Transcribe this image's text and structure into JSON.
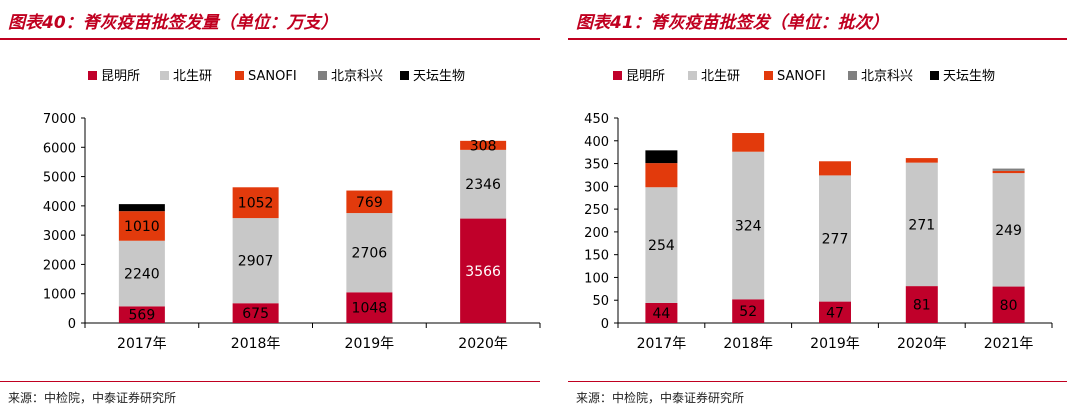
{
  "charts": [
    {
      "title": "图表40：脊灰疫苗批签发量（单位：万支）",
      "source": "来源：中检院，中泰证券研究所",
      "chart_data": {
        "type": "bar",
        "stacked": true,
        "unit": "万支",
        "categories": [
          "2017年",
          "2018年",
          "2019年",
          "2020年"
        ],
        "series": [
          {
            "name": "昆明所",
            "color": "#c0002a",
            "values": [
              569,
              675,
              1048,
              3566
            ]
          },
          {
            "name": "北生研",
            "color": "#c8c8c8",
            "values": [
              2240,
              2907,
              2706,
              2346
            ]
          },
          {
            "name": "SANOFI",
            "color": "#e23a0c",
            "values": [
              1010,
              1052,
              769,
              308
            ]
          },
          {
            "name": "北京科兴",
            "color": "#808080",
            "values": [
              0,
              0,
              0,
              0
            ]
          },
          {
            "name": "天坛生物",
            "color": "#000000",
            "values": [
              240,
              0,
              0,
              0
            ]
          }
        ],
        "show_labels": [
          0,
          1,
          2
        ],
        "ylim": [
          0,
          7000
        ],
        "yticks": [
          0,
          1000,
          2000,
          3000,
          4000,
          5000,
          6000,
          7000
        ],
        "legend": "top"
      }
    },
    {
      "title": "图表41：脊灰疫苗批签发（单位：批次）",
      "source": "来源：中检院，中泰证券研究所",
      "chart_data": {
        "type": "bar",
        "stacked": true,
        "unit": "批次",
        "categories": [
          "2017年",
          "2018年",
          "2019年",
          "2020年",
          "2021年"
        ],
        "series": [
          {
            "name": "昆明所",
            "color": "#c0002a",
            "values": [
              44,
              52,
              47,
              81,
              80
            ]
          },
          {
            "name": "北生研",
            "color": "#c8c8c8",
            "values": [
              254,
              324,
              277,
              271,
              249
            ]
          },
          {
            "name": "SANOFI",
            "color": "#e23a0c",
            "values": [
              53,
              41,
              31,
              10,
              5
            ]
          },
          {
            "name": "北京科兴",
            "color": "#808080",
            "values": [
              0,
              0,
              0,
              0,
              5
            ]
          },
          {
            "name": "天坛生物",
            "color": "#000000",
            "values": [
              28,
              0,
              0,
              0,
              0
            ]
          }
        ],
        "show_labels": [
          0,
          1
        ],
        "ylim": [
          0,
          450
        ],
        "yticks": [
          0,
          50,
          100,
          150,
          200,
          250,
          300,
          350,
          400,
          450
        ],
        "legend": "top"
      }
    }
  ]
}
